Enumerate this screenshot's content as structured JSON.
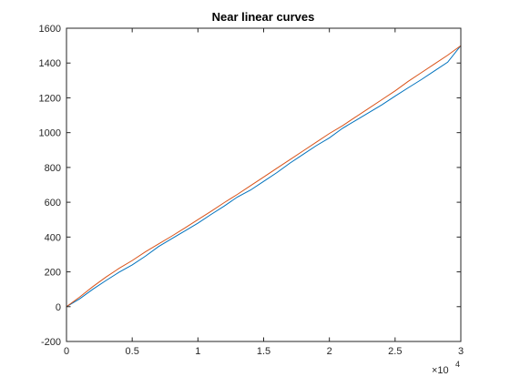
{
  "chart_data": {
    "type": "line",
    "title": "Near linear curves",
    "xlabel": "",
    "ylabel": "",
    "xlim": [
      0,
      30000
    ],
    "ylim": [
      -200,
      1600
    ],
    "x_ticks": [
      0,
      5000,
      10000,
      15000,
      20000,
      25000,
      30000
    ],
    "x_tick_labels": [
      "0",
      "0.5",
      "1",
      "1.5",
      "2",
      "2.5",
      "3"
    ],
    "x_exponent_label": {
      "base": "×10",
      "power": "4"
    },
    "y_ticks": [
      -200,
      0,
      200,
      400,
      600,
      800,
      1000,
      1200,
      1400,
      1600
    ],
    "y_tick_labels": [
      "-200",
      "0",
      "200",
      "400",
      "600",
      "800",
      "1000",
      "1200",
      "1400",
      "1600"
    ],
    "grid": false,
    "legend": "none",
    "series": [
      {
        "color": "#0072BD",
        "x": [
          0,
          1000,
          2000,
          3000,
          4000,
          5000,
          6000,
          7000,
          8000,
          9000,
          10000,
          11000,
          12000,
          13000,
          14000,
          15000,
          16000,
          17000,
          18000,
          19000,
          20000,
          21000,
          22000,
          23000,
          24000,
          25000,
          26000,
          27000,
          28000,
          29000,
          30000
        ],
        "y": [
          0,
          45,
          100,
          150,
          198,
          240,
          290,
          345,
          390,
          435,
          480,
          530,
          578,
          630,
          670,
          720,
          770,
          825,
          875,
          925,
          970,
          1025,
          1070,
          1115,
          1160,
          1210,
          1258,
          1305,
          1355,
          1405,
          1500
        ]
      },
      {
        "color": "#D95319",
        "x": [
          0,
          1000,
          2000,
          3000,
          4000,
          5000,
          6000,
          7000,
          8000,
          9000,
          10000,
          11000,
          12000,
          13000,
          14000,
          15000,
          16000,
          17000,
          18000,
          19000,
          20000,
          21000,
          22000,
          23000,
          24000,
          25000,
          26000,
          27000,
          28000,
          29000,
          30000
        ],
        "y": [
          0,
          55,
          115,
          170,
          220,
          265,
          315,
          360,
          405,
          452,
          500,
          548,
          598,
          645,
          695,
          745,
          795,
          845,
          895,
          945,
          995,
          1040,
          1090,
          1140,
          1190,
          1240,
          1295,
          1345,
          1395,
          1445,
          1500
        ]
      }
    ]
  }
}
